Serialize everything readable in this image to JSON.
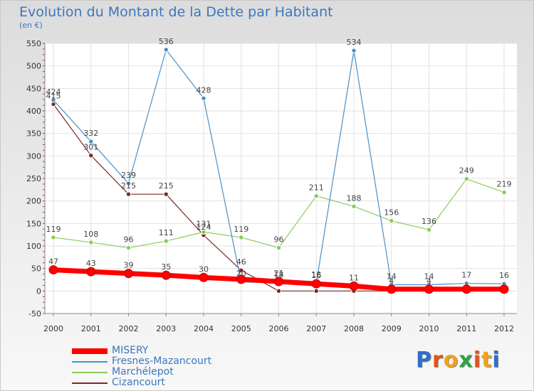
{
  "header": {
    "title": "Evolution du Montant de la Dette par Habitant",
    "subtitle": "(en €)"
  },
  "logo": {
    "text": "Proxiti",
    "colors": [
      "#2f6fc9",
      "#e8521c",
      "#f2a21a",
      "#2fa344",
      "#e8521c",
      "#f2a21a",
      "#2f6fc9"
    ]
  },
  "chart_data": {
    "type": "line",
    "title": "Evolution du Montant de la Dette par Habitant",
    "subtitle": "(en €)",
    "xlabel": "",
    "ylabel": "",
    "ylim": [
      -50,
      550
    ],
    "yticks": [
      -50,
      0,
      50,
      100,
      150,
      200,
      250,
      300,
      350,
      400,
      450,
      500,
      550
    ],
    "grid": true,
    "legend_position": "bottom-left",
    "x": [
      "2000",
      "2001",
      "2002",
      "2003",
      "2004",
      "2005",
      "2006",
      "2007",
      "2008",
      "2009",
      "2010",
      "2011",
      "2012"
    ],
    "series": [
      {
        "name": "MISERY",
        "color": "#ff0000",
        "values": [
          47,
          43,
          39,
          35,
          30,
          26,
          21,
          16,
          11,
          4,
          4,
          4,
          4
        ],
        "labels": [
          "47",
          "43",
          "39",
          "35",
          "30",
          "",
          "21",
          "16",
          "11",
          "4",
          "4",
          "",
          ""
        ]
      },
      {
        "name": "Fresnes-Mazancourt",
        "color": "#4a90c8",
        "values": [
          424,
          332,
          239,
          536,
          428,
          20,
          18,
          18,
          534,
          14,
          14,
          17,
          16
        ],
        "labels": [
          "424",
          "332",
          "239",
          "536",
          "428",
          "20",
          "18",
          "18",
          "534",
          "14",
          "14",
          "17",
          "16"
        ]
      },
      {
        "name": "Marchélepot",
        "color": "#88cc55",
        "values": [
          119,
          108,
          96,
          111,
          131,
          119,
          96,
          211,
          188,
          156,
          136,
          249,
          219
        ],
        "labels": [
          "119",
          "108",
          "96",
          "111",
          "131",
          "119",
          "96",
          "211",
          "188",
          "156",
          "136",
          "249",
          "219"
        ]
      },
      {
        "name": "Cizancourt",
        "color": "#7a2a2a",
        "values": [
          415,
          301,
          215,
          215,
          124,
          46,
          0,
          0,
          0,
          0,
          0,
          0,
          0
        ],
        "labels": [
          "415",
          "301",
          "215",
          "215",
          "124",
          "46",
          "",
          "",
          "",
          "",
          "",
          "",
          ""
        ]
      }
    ]
  }
}
